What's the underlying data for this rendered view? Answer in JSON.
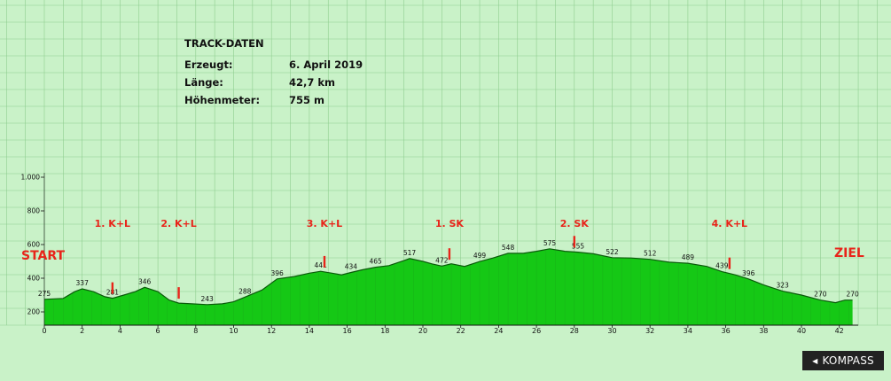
{
  "info": {
    "title": "TRACK-DATEN",
    "rows": [
      {
        "label": "Erzeugt:",
        "value": "6. April 2019"
      },
      {
        "label": "Länge:",
        "value": "42,7 km"
      },
      {
        "label": "Höhenmeter:",
        "value": "755 m"
      }
    ]
  },
  "start_label": "START",
  "end_label": "ZIEL",
  "brand": "KOMPASS",
  "colors": {
    "background": "#c9f2c8",
    "fill": "#15c815",
    "line": "#0a5a0a",
    "marker": "#e8241a",
    "grid": "#8fce8f"
  },
  "chart_data": {
    "type": "area",
    "xlim": [
      0,
      43
    ],
    "ylim": [
      100,
      1100
    ],
    "x_ticks": [
      0,
      2,
      4,
      6,
      8,
      10,
      12,
      14,
      16,
      18,
      20,
      22,
      24,
      26,
      28,
      30,
      32,
      34,
      36,
      38,
      40,
      42
    ],
    "y_ticks": [
      {
        "value": 200,
        "label": "200"
      },
      {
        "value": 400,
        "label": "400"
      },
      {
        "value": 600,
        "label": "600"
      },
      {
        "value": 800,
        "label": "800"
      },
      {
        "value": 1000,
        "label": "1.000"
      }
    ],
    "profile": [
      [
        0,
        275
      ],
      [
        1,
        280
      ],
      [
        1.6,
        320
      ],
      [
        2,
        337
      ],
      [
        2.6,
        320
      ],
      [
        3.2,
        290
      ],
      [
        3.6,
        281
      ],
      [
        4.2,
        300
      ],
      [
        4.8,
        320
      ],
      [
        5.3,
        346
      ],
      [
        6,
        320
      ],
      [
        6.6,
        270
      ],
      [
        7.1,
        252
      ],
      [
        7.8,
        248
      ],
      [
        8.6,
        243
      ],
      [
        9.4,
        248
      ],
      [
        10,
        260
      ],
      [
        10.6,
        288
      ],
      [
        11.5,
        330
      ],
      [
        12.3,
        396
      ],
      [
        13.2,
        410
      ],
      [
        14,
        430
      ],
      [
        14.6,
        441
      ],
      [
        15.2,
        430
      ],
      [
        15.7,
        420
      ],
      [
        16.2,
        434
      ],
      [
        16.8,
        450
      ],
      [
        17.5,
        465
      ],
      [
        18.2,
        475
      ],
      [
        19,
        505
      ],
      [
        19.3,
        517
      ],
      [
        20,
        500
      ],
      [
        20.5,
        485
      ],
      [
        21,
        472
      ],
      [
        21.5,
        486
      ],
      [
        22.2,
        470
      ],
      [
        23,
        499
      ],
      [
        23.7,
        520
      ],
      [
        24.5,
        548
      ],
      [
        25.3,
        548
      ],
      [
        26,
        560
      ],
      [
        26.7,
        575
      ],
      [
        27.5,
        560
      ],
      [
        28.2,
        555
      ],
      [
        29,
        545
      ],
      [
        30,
        522
      ],
      [
        31,
        520
      ],
      [
        32,
        512
      ],
      [
        33,
        495
      ],
      [
        34,
        489
      ],
      [
        35,
        470
      ],
      [
        35.8,
        439
      ],
      [
        36.5,
        420
      ],
      [
        37.2,
        396
      ],
      [
        38,
        360
      ],
      [
        39,
        323
      ],
      [
        40,
        300
      ],
      [
        41,
        270
      ],
      [
        41.8,
        255
      ],
      [
        42.3,
        270
      ],
      [
        42.7,
        270
      ]
    ],
    "point_labels": [
      {
        "x": 0,
        "y": 275,
        "label": "275"
      },
      {
        "x": 2,
        "y": 337,
        "label": "337"
      },
      {
        "x": 3.6,
        "y": 281,
        "label": "281"
      },
      {
        "x": 5.3,
        "y": 346,
        "label": "346"
      },
      {
        "x": 8.6,
        "y": 243,
        "label": "243"
      },
      {
        "x": 10.6,
        "y": 288,
        "label": "288"
      },
      {
        "x": 12.3,
        "y": 396,
        "label": "396"
      },
      {
        "x": 14.6,
        "y": 441,
        "label": "441"
      },
      {
        "x": 16.2,
        "y": 434,
        "label": "434"
      },
      {
        "x": 17.5,
        "y": 465,
        "label": "465"
      },
      {
        "x": 19.3,
        "y": 517,
        "label": "517"
      },
      {
        "x": 21,
        "y": 472,
        "label": "472"
      },
      {
        "x": 23,
        "y": 499,
        "label": "499"
      },
      {
        "x": 24.5,
        "y": 548,
        "label": "548"
      },
      {
        "x": 26.7,
        "y": 575,
        "label": "575"
      },
      {
        "x": 28.2,
        "y": 555,
        "label": "555"
      },
      {
        "x": 30,
        "y": 522,
        "label": "522"
      },
      {
        "x": 32,
        "y": 512,
        "label": "512"
      },
      {
        "x": 34,
        "y": 489,
        "label": "489"
      },
      {
        "x": 35.8,
        "y": 439,
        "label": "439"
      },
      {
        "x": 37.2,
        "y": 396,
        "label": "396"
      },
      {
        "x": 39,
        "y": 323,
        "label": "323"
      },
      {
        "x": 41,
        "y": 270,
        "label": "270"
      },
      {
        "x": 42.7,
        "y": 270,
        "label": "270"
      }
    ],
    "stations": [
      {
        "x": 3.6,
        "label": "1. K+L"
      },
      {
        "x": 7.1,
        "label": "2. K+L"
      },
      {
        "x": 14.8,
        "label": "3. K+L"
      },
      {
        "x": 21.4,
        "label": "1. SK"
      },
      {
        "x": 28,
        "label": "2. SK"
      },
      {
        "x": 36.2,
        "label": "4. K+L"
      }
    ]
  }
}
